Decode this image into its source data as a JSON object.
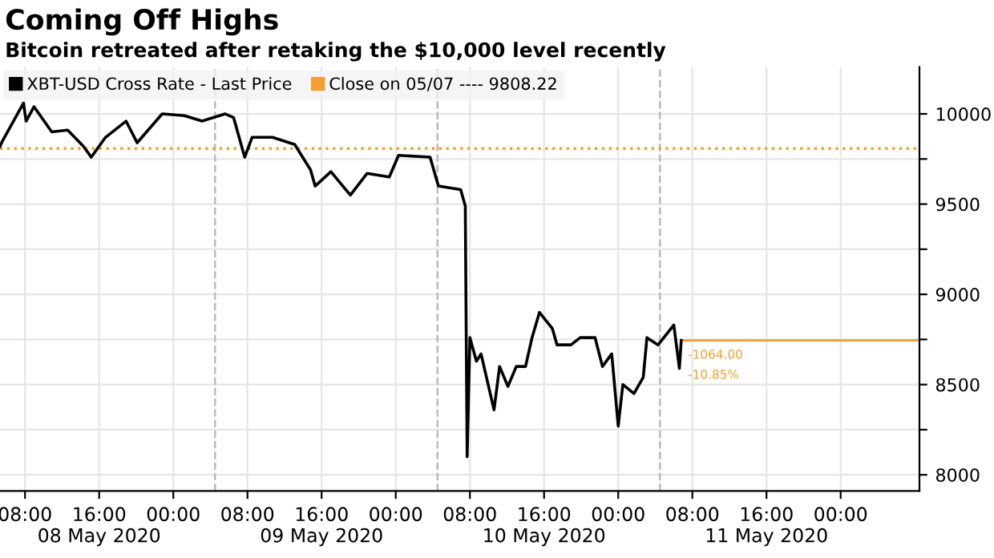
{
  "chart_data": {
    "type": "line",
    "title": "Coming Off Highs",
    "subtitle": "Bitcoin retreated after retaking the $10,000 level recently",
    "x": [
      "2020-05-08T05:18",
      "2020-05-08T05:34",
      "2020-05-08T07:50",
      "2020-05-08T08:07",
      "2020-05-08T08:58",
      "2020-05-08T10:53",
      "2020-05-08T12:36",
      "2020-05-08T14:18",
      "2020-05-08T15:09",
      "2020-05-08T16:41",
      "2020-05-08T18:54",
      "2020-05-08T20:06",
      "2020-05-08T22:48",
      "2020-05-09T01:12",
      "2020-05-09T03:06",
      "2020-05-09T05:36",
      "2020-05-09T06:30",
      "2020-05-09T07:42",
      "2020-05-09T08:30",
      "2020-05-09T10:42",
      "2020-05-09T13:06",
      "2020-05-09T14:48",
      "2020-05-09T15:18",
      "2020-05-09T17:00",
      "2020-05-09T19:06",
      "2020-05-09T20:54",
      "2020-05-09T23:18",
      "2020-05-10T00:18",
      "2020-05-10T03:42",
      "2020-05-10T04:36",
      "2020-05-10T07:00",
      "2020-05-10T07:30",
      "2020-05-10T07:42",
      "2020-05-10T08:00",
      "2020-05-10T08:42",
      "2020-05-10T09:12",
      "2020-05-10T10:36",
      "2020-05-10T11:12",
      "2020-05-10T12:06",
      "2020-05-10T13:00",
      "2020-05-10T14:00",
      "2020-05-10T14:42",
      "2020-05-10T15:30",
      "2020-05-10T16:54",
      "2020-05-10T17:24",
      "2020-05-10T18:54",
      "2020-05-10T19:54",
      "2020-05-10T21:30",
      "2020-05-10T22:18",
      "2020-05-10T23:18",
      "2020-05-11T00:00",
      "2020-05-11T00:30",
      "2020-05-11T01:42",
      "2020-05-11T02:42",
      "2020-05-11T03:06",
      "2020-05-11T04:18",
      "2020-05-11T06:00",
      "2020-05-11T06:36",
      "2020-05-11T06:48"
    ],
    "series": [
      {
        "name": "XBT-USD Cross Rate - Last Price",
        "color": "#000000",
        "values": [
          9820,
          9850,
          10060,
          9960,
          10040,
          9900,
          9910,
          9820,
          9760,
          9870,
          9960,
          9840,
          10000,
          9990,
          9960,
          10000,
          9980,
          9760,
          9870,
          9870,
          9830,
          9690,
          9600,
          9680,
          9550,
          9670,
          9650,
          9770,
          9760,
          9600,
          9580,
          9490,
          8100,
          8760,
          8630,
          8670,
          8360,
          8600,
          8490,
          8600,
          8600,
          8760,
          8900,
          8810,
          8720,
          8720,
          8760,
          8760,
          8600,
          8670,
          8270,
          8500,
          8450,
          8540,
          8760,
          8720,
          8830,
          8590,
          8744.22
        ]
      }
    ],
    "xlim": [
      "2020-05-08T05:18",
      "2020-05-12T08:30"
    ],
    "xticks": [
      {
        "value": "2020-05-08T08:00",
        "label": "08:00"
      },
      {
        "value": "2020-05-08T16:00",
        "label": "16:00\n08 May 2020"
      },
      {
        "value": "2020-05-09T00:00",
        "label": "00:00"
      },
      {
        "value": "2020-05-09T08:00",
        "label": "08:00"
      },
      {
        "value": "2020-05-09T16:00",
        "label": "16:00\n09 May 2020"
      },
      {
        "value": "2020-05-10T00:00",
        "label": "00:00"
      },
      {
        "value": "2020-05-10T08:00",
        "label": "08:00"
      },
      {
        "value": "2020-05-10T16:00",
        "label": "16:00\n10 May 2020"
      },
      {
        "value": "2020-05-11T00:00",
        "label": "00:00"
      },
      {
        "value": "2020-05-11T08:00",
        "label": "08:00"
      },
      {
        "value": "2020-05-11T16:00",
        "label": "16:00\n11 May 2020"
      },
      {
        "value": "2020-05-12T00:00",
        "label": "00:00"
      }
    ],
    "ylim": [
      7910,
      10260
    ],
    "yticks": [
      8000,
      {
        "value": 8250,
        "label": null
      },
      8500,
      {
        "value": 8750,
        "label": null
      },
      9000,
      {
        "value": 9250,
        "label": null
      },
      9500,
      {
        "value": 9750,
        "label": null
      },
      10000
    ],
    "ref_lines": [
      {
        "axis": "y",
        "value": 9808.22,
        "label": "Close on 05/07 ---- 9808.22",
        "color": "#f0a030",
        "line_style": "dotted"
      },
      {
        "axis": "y",
        "value": 8744.22,
        "color": "#f0a030",
        "line_style": "solid"
      },
      {
        "axis": "x",
        "value": "2020-05-09T04:30",
        "color": "#bbbbbb",
        "line_style": "dashed"
      },
      {
        "axis": "x",
        "value": "2020-05-10T04:30",
        "color": "#bbbbbb",
        "line_style": "dashed"
      },
      {
        "axis": "x",
        "value": "2020-05-11T04:30",
        "color": "#bbbbbb",
        "line_style": "dashed"
      }
    ],
    "annotations": [
      {
        "text": "-1064.00",
        "x": "2020-05-11T06:48",
        "y": 8744.22
      },
      {
        "text": "-10.85%",
        "x": "2020-05-11T06:48",
        "y": 8744.22
      }
    ],
    "grid": true,
    "legend": "top left",
    "marker": "none",
    "line_style": "solid"
  }
}
